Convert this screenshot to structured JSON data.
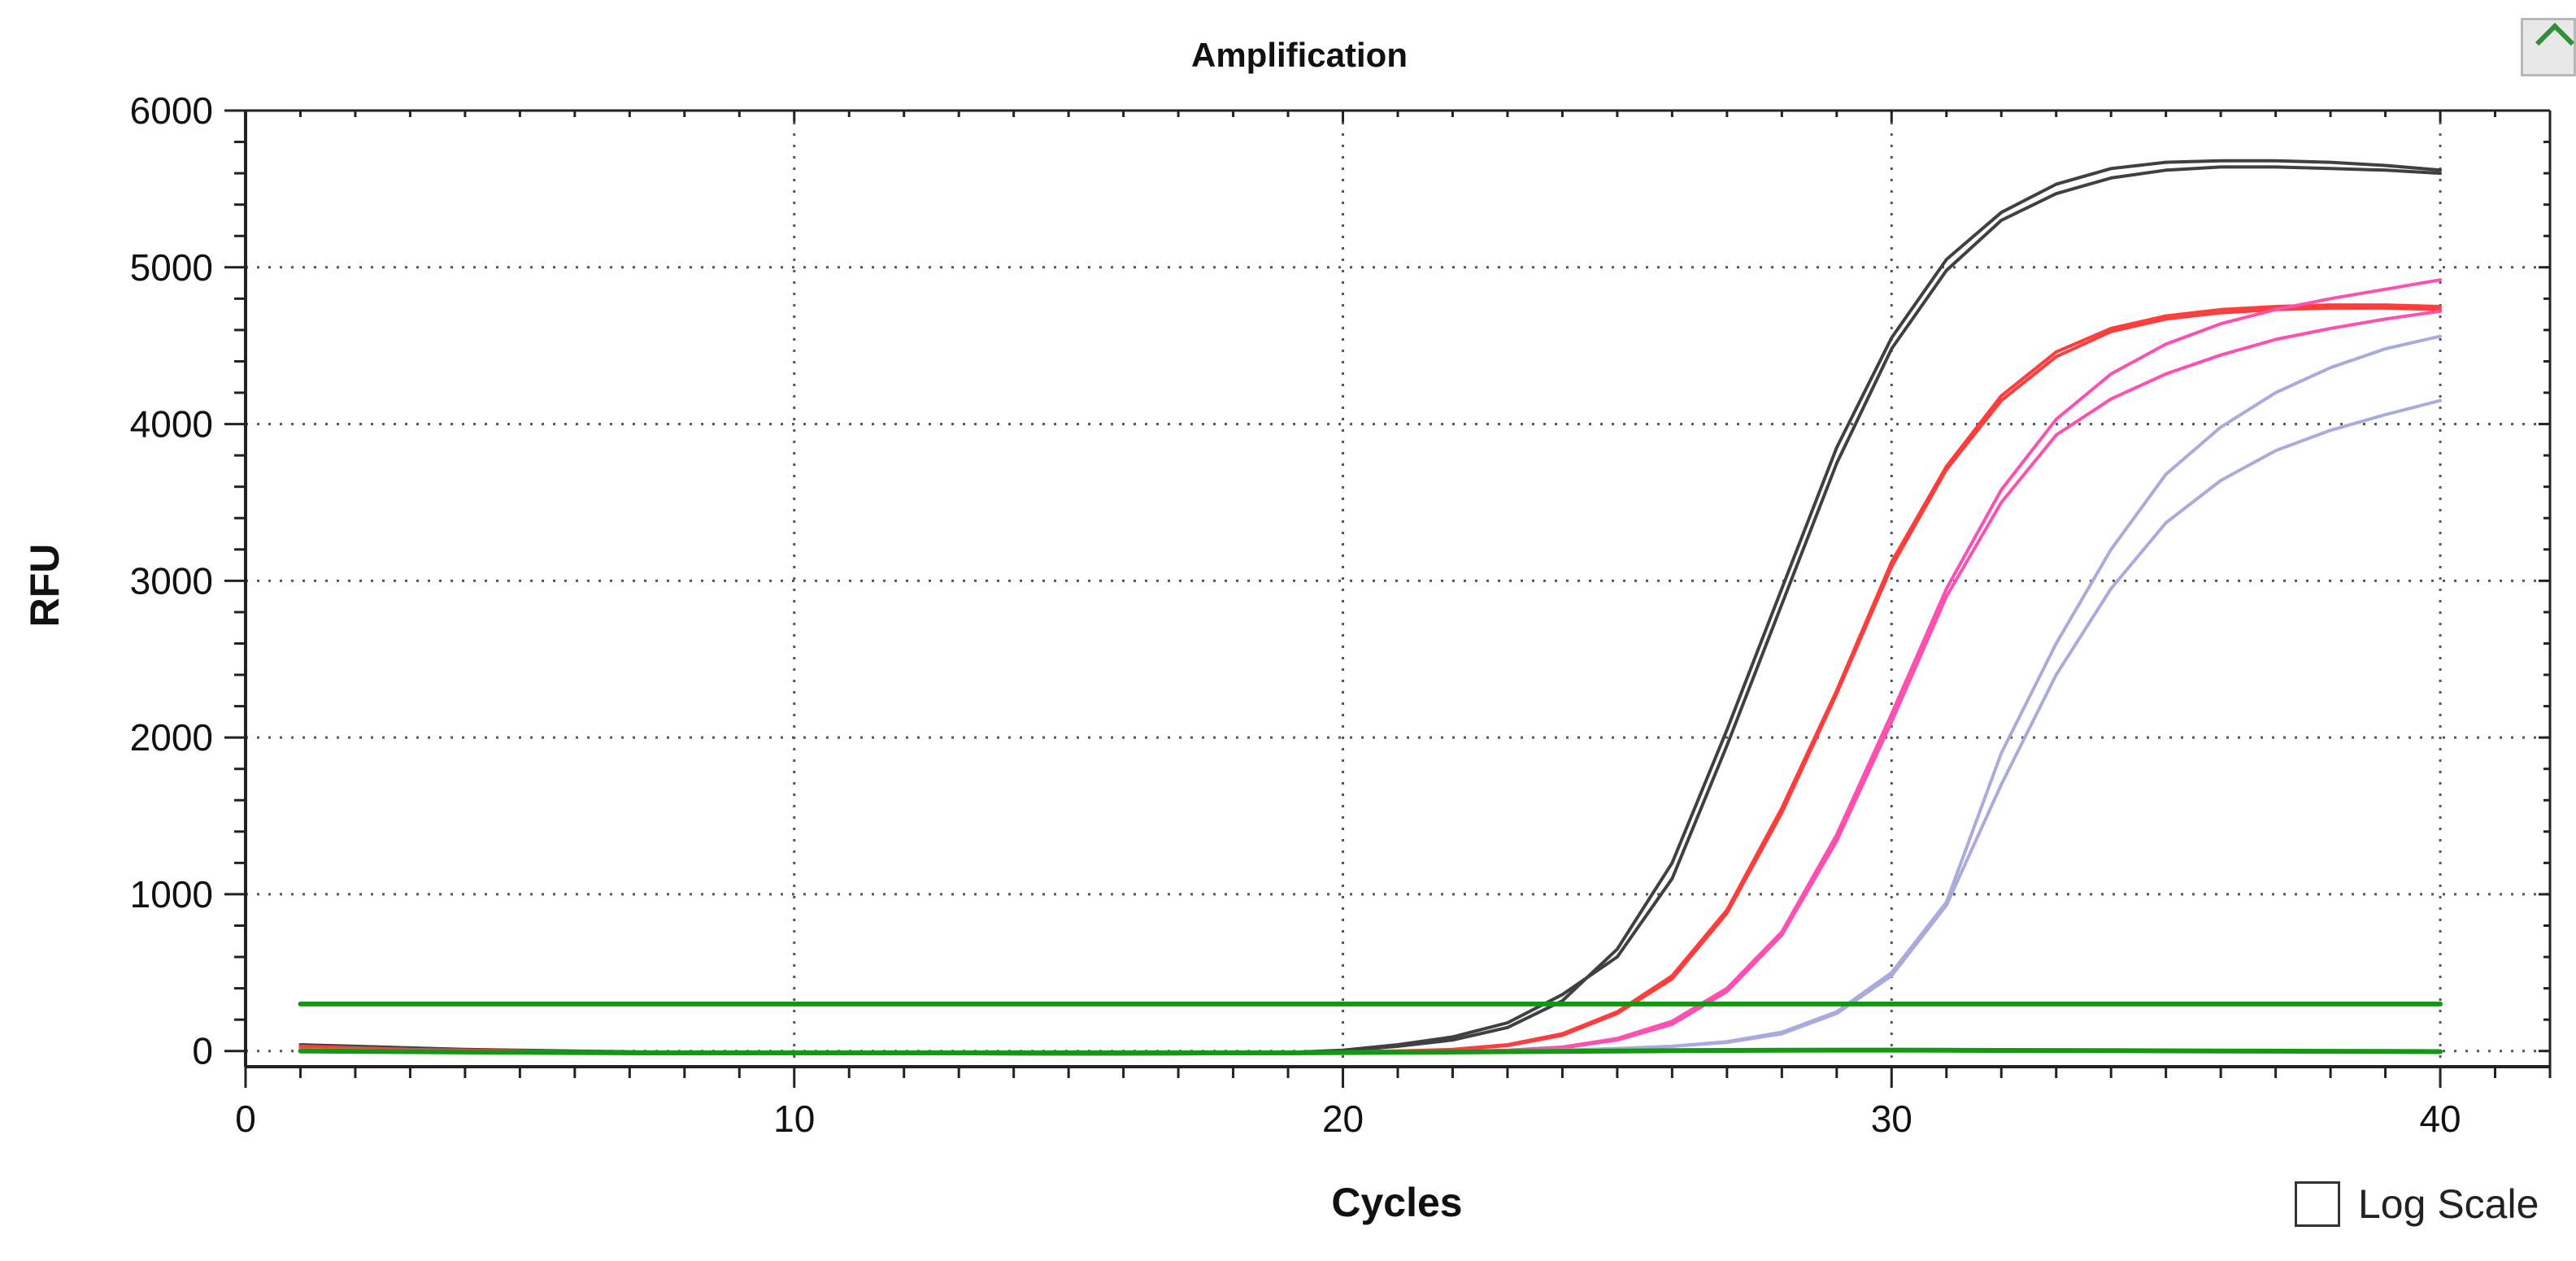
{
  "chart_data": {
    "type": "line",
    "title": "Amplification",
    "xlabel": "Cycles",
    "ylabel": "RFU",
    "xlim": [
      0,
      42
    ],
    "ylim": [
      -100,
      6000
    ],
    "x_ticks": [
      0,
      10,
      20,
      30,
      40
    ],
    "y_ticks": [
      0,
      1000,
      2000,
      3000,
      4000,
      5000,
      6000
    ],
    "grid": true,
    "x": [
      1,
      2,
      3,
      4,
      5,
      6,
      7,
      8,
      9,
      10,
      11,
      12,
      13,
      14,
      15,
      16,
      17,
      18,
      19,
      20,
      21,
      22,
      23,
      24,
      25,
      26,
      27,
      28,
      29,
      30,
      31,
      32,
      33,
      34,
      35,
      36,
      37,
      38,
      39,
      40
    ],
    "series": [
      {
        "color": "#404040",
        "values": [
          40,
          30,
          20,
          10,
          5,
          0,
          -5,
          -8,
          -10,
          -12,
          -14,
          -15,
          -16,
          -17,
          -18,
          -18,
          -18,
          -16,
          -12,
          0,
          30,
          70,
          150,
          320,
          650,
          1200,
          2050,
          2950,
          3850,
          4550,
          5050,
          5350,
          5530,
          5630,
          5670,
          5680,
          5680,
          5670,
          5650,
          5620
        ]
      },
      {
        "color": "#404040",
        "values": [
          30,
          22,
          14,
          6,
          2,
          -2,
          -6,
          -9,
          -11,
          -13,
          -15,
          -16,
          -17,
          -18,
          -18,
          -18,
          -17,
          -14,
          -10,
          5,
          40,
          90,
          180,
          360,
          600,
          1100,
          1950,
          2850,
          3750,
          4480,
          4980,
          5300,
          5470,
          5570,
          5620,
          5640,
          5640,
          5630,
          5620,
          5600
        ]
      },
      {
        "color": "#ff3d3d",
        "values": [
          30,
          20,
          10,
          5,
          0,
          -5,
          -8,
          -10,
          -12,
          -14,
          -15,
          -16,
          -17,
          -17,
          -17,
          -17,
          -16,
          -14,
          -10,
          -6,
          0,
          10,
          40,
          110,
          250,
          480,
          900,
          1550,
          2300,
          3120,
          3730,
          4180,
          4460,
          4610,
          4690,
          4730,
          4750,
          4760,
          4760,
          4750
        ]
      },
      {
        "color": "#ff3d3d",
        "values": [
          20,
          14,
          8,
          3,
          0,
          -4,
          -7,
          -9,
          -11,
          -13,
          -14,
          -15,
          -16,
          -16,
          -16,
          -16,
          -15,
          -13,
          -10,
          -6,
          0,
          8,
          35,
          100,
          240,
          460,
          880,
          1520,
          2280,
          3090,
          3710,
          4150,
          4430,
          4590,
          4670,
          4710,
          4730,
          4740,
          4740,
          4730
        ]
      },
      {
        "color": "#ff4fb0",
        "values": [
          10,
          6,
          3,
          0,
          -3,
          -6,
          -8,
          -10,
          -12,
          -13,
          -14,
          -15,
          -15,
          -15,
          -15,
          -15,
          -14,
          -12,
          -10,
          -8,
          -5,
          -2,
          5,
          25,
          80,
          190,
          400,
          760,
          1380,
          2150,
          2950,
          3580,
          4030,
          4320,
          4510,
          4640,
          4730,
          4800,
          4860,
          4920
        ]
      },
      {
        "color": "#ff4fb0",
        "values": [
          5,
          2,
          0,
          -2,
          -4,
          -6,
          -8,
          -9,
          -10,
          -11,
          -12,
          -13,
          -13,
          -13,
          -13,
          -13,
          -12,
          -11,
          -9,
          -7,
          -5,
          -3,
          3,
          20,
          70,
          170,
          380,
          740,
          1340,
          2100,
          2900,
          3500,
          3930,
          4160,
          4320,
          4440,
          4540,
          4610,
          4670,
          4720
        ]
      },
      {
        "color": "#aaaadd",
        "values": [
          5,
          2,
          0,
          -2,
          -4,
          -6,
          -7,
          -8,
          -9,
          -10,
          -11,
          -12,
          -12,
          -12,
          -12,
          -12,
          -11,
          -10,
          -9,
          -7,
          -5,
          -3,
          0,
          5,
          15,
          30,
          60,
          120,
          250,
          500,
          950,
          1900,
          2600,
          3200,
          3680,
          3980,
          4200,
          4360,
          4480,
          4560
        ]
      },
      {
        "color": "#aaaadd",
        "values": [
          0,
          -2,
          -3,
          -4,
          -5,
          -6,
          -7,
          -8,
          -9,
          -10,
          -10,
          -11,
          -11,
          -11,
          -11,
          -11,
          -10,
          -9,
          -8,
          -7,
          -5,
          -3,
          0,
          5,
          15,
          30,
          55,
          110,
          240,
          480,
          930,
          1700,
          2400,
          2950,
          3370,
          3640,
          3830,
          3960,
          4060,
          4150
        ]
      },
      {
        "color": "#119911",
        "values": [
          300,
          300,
          300,
          300,
          300,
          300,
          300,
          300,
          300,
          300,
          300,
          300,
          300,
          300,
          300,
          300,
          300,
          300,
          300,
          300,
          300,
          300,
          300,
          300,
          300,
          300,
          300,
          300,
          300,
          300,
          300,
          300,
          300,
          300,
          300,
          300,
          300,
          300,
          300,
          300
        ]
      },
      {
        "color": "#119911",
        "values": [
          0,
          -2,
          -4,
          -6,
          -8,
          -10,
          -12,
          -12,
          -12,
          -12,
          -12,
          -12,
          -12,
          -12,
          -12,
          -12,
          -12,
          -12,
          -12,
          -10,
          -8,
          -6,
          -4,
          -2,
          0,
          2,
          4,
          5,
          6,
          6,
          5,
          4,
          3,
          2,
          1,
          0,
          -1,
          -2,
          -3,
          -4
        ]
      }
    ]
  },
  "controls": {
    "log_scale_label": "Log Scale"
  }
}
